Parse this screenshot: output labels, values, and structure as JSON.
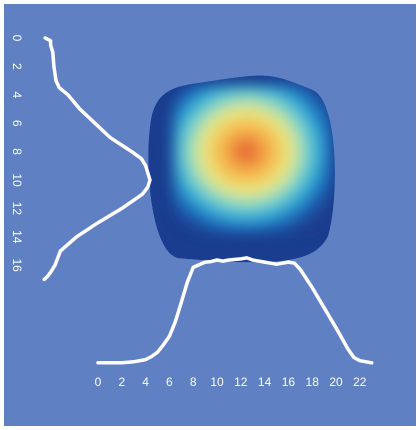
{
  "chart_data": {
    "type": "heatmap",
    "title": "",
    "xlabel": "",
    "ylabel": "",
    "background_color": "#6080c4",
    "curve_color": "#ffffff",
    "colormap": [
      "#1a3d8f",
      "#1f6fbf",
      "#33b0d8",
      "#7ed6c8",
      "#e6ea85",
      "#f6c353",
      "#ef8a3c",
      "#d9452a"
    ],
    "grid": false,
    "heatmap": {
      "shape": "rounded-rectangle",
      "x_range": [
        4.5,
        19.5
      ],
      "y_range": [
        3.0,
        15.5
      ],
      "peak": {
        "x": 13,
        "y": 8.5
      }
    },
    "x_axis": {
      "range": [
        0,
        23
      ],
      "ticks": [
        0,
        2,
        4,
        6,
        8,
        10,
        12,
        14,
        16,
        18,
        20,
        22
      ],
      "tick_labels": [
        "0",
        "2",
        "4",
        "6",
        "8",
        "10",
        "12",
        "14",
        "16",
        "18",
        "20",
        "22"
      ]
    },
    "y_axis": {
      "range": [
        0,
        17
      ],
      "inverted": true,
      "ticks": [
        0,
        2,
        4,
        6,
        8,
        10,
        12,
        14,
        16
      ],
      "tick_labels": [
        "0",
        "2",
        "4",
        "6",
        "8",
        "10",
        "12",
        "14",
        "16"
      ],
      "tick_label_rotation": 90
    },
    "series": [
      {
        "kind": "x-profile",
        "x": [
          0,
          1,
          2,
          3,
          4,
          4.5,
          5,
          5.5,
          6,
          6.5,
          7,
          7.5,
          8,
          9,
          9.5,
          10,
          10.5,
          11,
          12,
          12.5,
          13,
          14,
          15,
          16,
          16.5,
          17,
          18,
          19,
          20,
          20.5,
          21,
          21.5,
          22,
          23
        ],
        "y": [
          0.03,
          0.03,
          0.03,
          0.04,
          0.06,
          0.09,
          0.13,
          0.2,
          0.28,
          0.42,
          0.6,
          0.79,
          0.93,
          0.98,
          0.985,
          1.0,
          0.99,
          1.0,
          1.01,
          1.02,
          1.0,
          0.98,
          0.96,
          0.98,
          0.97,
          0.91,
          0.74,
          0.55,
          0.36,
          0.26,
          0.16,
          0.08,
          0.05,
          0.03
        ]
      },
      {
        "kind": "y-profile",
        "y": [
          0,
          0.2,
          0.5,
          1,
          2,
          3,
          3.5,
          4,
          5,
          6,
          7,
          8,
          8.5,
          9,
          9.5,
          10,
          10.5,
          11,
          12,
          13,
          14,
          15,
          16,
          16.5,
          16.8,
          17
        ],
        "x": [
          0.03,
          0.08,
          0.08,
          0.1,
          0.11,
          0.13,
          0.16,
          0.24,
          0.35,
          0.49,
          0.63,
          0.83,
          0.92,
          0.96,
          0.98,
          1.0,
          0.98,
          0.93,
          0.74,
          0.52,
          0.32,
          0.17,
          0.12,
          0.08,
          0.05,
          0.02
        ]
      }
    ]
  }
}
